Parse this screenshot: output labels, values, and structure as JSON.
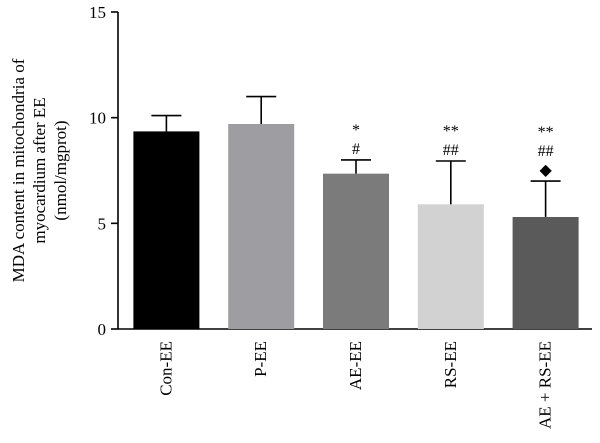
{
  "chart_data": {
    "type": "bar",
    "title": "",
    "ylabel_lines": [
      "MDA content in mitochondria of",
      "myocardium after EE",
      "(nmol/mgprot)"
    ],
    "xlabel": "",
    "ylim": [
      0,
      15
    ],
    "yticks": [
      0,
      5,
      10,
      15
    ],
    "categories": [
      "Con-EE",
      "P-EE",
      "AE-EE",
      "RS-EE",
      "AE + RS-EE"
    ],
    "values": [
      9.35,
      9.7,
      7.35,
      5.9,
      5.3
    ],
    "errors": [
      0.75,
      1.3,
      0.65,
      2.05,
      1.7
    ],
    "colors": [
      "#000000",
      "#9e9ea2",
      "#7b7b7b",
      "#d2d2d2",
      "#5a5a5a"
    ],
    "annotations": [
      [],
      [],
      [
        "*",
        "#"
      ],
      [
        "**",
        "##"
      ],
      [
        "**",
        "##",
        "◆"
      ]
    ],
    "grid": false,
    "legend": "none"
  }
}
